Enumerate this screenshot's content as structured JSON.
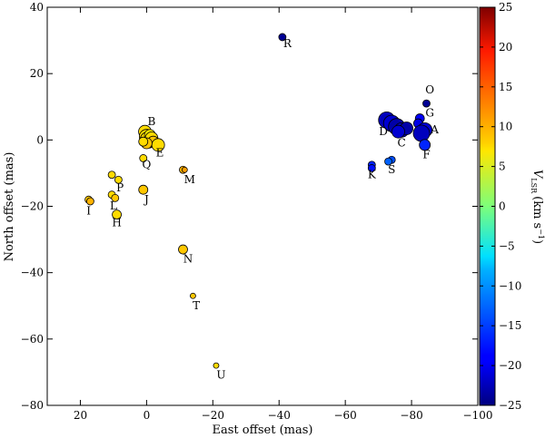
{
  "chart_data": {
    "type": "scatter",
    "xlabel": "East offset (mas)",
    "ylabel": "North offset (mas)",
    "xlim": [
      30,
      -100
    ],
    "ylim": [
      -80,
      40
    ],
    "xticks": [
      20,
      0,
      -20,
      -40,
      -60,
      -80,
      -100
    ],
    "yticks": [
      40,
      20,
      0,
      -20,
      -40,
      -60,
      -80
    ],
    "xtick_labels": [
      "20",
      "0",
      "−20",
      "−40",
      "−60",
      "−80",
      "−100"
    ],
    "ytick_labels": [
      "40",
      "20",
      "0",
      "−20",
      "−40",
      "−60",
      "−80"
    ],
    "colorbar": {
      "label_main": "V",
      "label_sub": "LSR",
      "label_unit": "(km s",
      "label_sup": "−1",
      "label_close": ")",
      "range": [
        -25,
        25
      ],
      "ticks": [
        25,
        20,
        15,
        10,
        5,
        0,
        -5,
        -10,
        -15,
        -20,
        -25
      ],
      "tick_labels": [
        "25",
        "20",
        "15",
        "10",
        "5",
        "0",
        "−5",
        "−10",
        "−15",
        "−20",
        "−25"
      ],
      "colormap": "jet"
    },
    "points": [
      {
        "x": -41,
        "y": 31,
        "v": -24,
        "size": 4
      },
      {
        "x": -84.5,
        "y": 11,
        "v": -24,
        "size": 4
      },
      {
        "x": -82.5,
        "y": 6.5,
        "v": -19,
        "size": 5
      },
      {
        "x": -82,
        "y": 5,
        "v": -20,
        "size": 5
      },
      {
        "x": -84,
        "y": 3,
        "v": -21,
        "size": 8
      },
      {
        "x": -83,
        "y": 2,
        "v": -22,
        "size": 9
      },
      {
        "x": -84,
        "y": -1.5,
        "v": -17,
        "size": 6
      },
      {
        "x": -72.5,
        "y": 6,
        "v": -22,
        "size": 9
      },
      {
        "x": -74,
        "y": 5,
        "v": -21,
        "size": 9
      },
      {
        "x": -75.5,
        "y": 4,
        "v": -23,
        "size": 9
      },
      {
        "x": -77,
        "y": 3,
        "v": -22,
        "size": 8
      },
      {
        "x": -78.5,
        "y": 3.5,
        "v": -23,
        "size": 7
      },
      {
        "x": -76,
        "y": 2.5,
        "v": -21,
        "size": 7
      },
      {
        "x": -68,
        "y": -7.5,
        "v": -17,
        "size": 4
      },
      {
        "x": -68,
        "y": -8.5,
        "v": -18,
        "size": 4
      },
      {
        "x": -74,
        "y": -6,
        "v": -15,
        "size": 4
      },
      {
        "x": -73,
        "y": -6.5,
        "v": -14,
        "size": 4
      },
      {
        "x": 0.5,
        "y": 2.5,
        "v": 8,
        "size": 7
      },
      {
        "x": 0,
        "y": 1,
        "v": 8,
        "size": 8
      },
      {
        "x": -0.5,
        "y": 0,
        "v": 8,
        "size": 9
      },
      {
        "x": -1,
        "y": 1.5,
        "v": 7,
        "size": 6
      },
      {
        "x": -1.5,
        "y": 0.5,
        "v": 8,
        "size": 7
      },
      {
        "x": -2,
        "y": -0.5,
        "v": 9,
        "size": 6
      },
      {
        "x": -3.5,
        "y": -1.5,
        "v": 8,
        "size": 7
      },
      {
        "x": 0,
        "y": -1,
        "v": 9,
        "size": 6
      },
      {
        "x": 1,
        "y": -0.5,
        "v": 8,
        "size": 5
      },
      {
        "x": 1,
        "y": -5.5,
        "v": 8,
        "size": 4
      },
      {
        "x": 10.5,
        "y": -10.5,
        "v": 8,
        "size": 4
      },
      {
        "x": 8.5,
        "y": -12,
        "v": 8,
        "size": 4
      },
      {
        "x": 17.5,
        "y": -18,
        "v": 9,
        "size": 4
      },
      {
        "x": 17,
        "y": -18.5,
        "v": 10,
        "size": 4
      },
      {
        "x": 10.5,
        "y": -16.5,
        "v": 8,
        "size": 4
      },
      {
        "x": 9.5,
        "y": -17.5,
        "v": 9,
        "size": 4
      },
      {
        "x": 9,
        "y": -22.5,
        "v": 8,
        "size": 5
      },
      {
        "x": 1,
        "y": -15,
        "v": 9,
        "size": 5
      },
      {
        "x": -11,
        "y": -9,
        "v": 10,
        "size": 4
      },
      {
        "x": -11.5,
        "y": -9,
        "v": 11,
        "size": 3
      },
      {
        "x": -11,
        "y": -33,
        "v": 9,
        "size": 5
      },
      {
        "x": -14,
        "y": -47,
        "v": 9,
        "size": 3
      },
      {
        "x": -21,
        "y": -68,
        "v": 8,
        "size": 3
      }
    ],
    "labels": [
      {
        "text": "R",
        "x": -42.5,
        "y": 28
      },
      {
        "text": "O",
        "x": -85.5,
        "y": 14
      },
      {
        "text": "G",
        "x": -85.5,
        "y": 7
      },
      {
        "text": "A",
        "x": -87,
        "y": 2
      },
      {
        "text": "D",
        "x": -71.5,
        "y": 1.5
      },
      {
        "text": "C",
        "x": -77,
        "y": -2
      },
      {
        "text": "F",
        "x": -84.5,
        "y": -5.5
      },
      {
        "text": "K",
        "x": -68,
        "y": -11.5
      },
      {
        "text": "S",
        "x": -74,
        "y": -10
      },
      {
        "text": "B",
        "x": -1.5,
        "y": 4.5
      },
      {
        "text": "E",
        "x": -4,
        "y": -5
      },
      {
        "text": "Q",
        "x": 0,
        "y": -8.5
      },
      {
        "text": "P",
        "x": 8,
        "y": -15.5
      },
      {
        "text": "M",
        "x": -13,
        "y": -13
      },
      {
        "text": "I",
        "x": 17.5,
        "y": -22.5
      },
      {
        "text": "L",
        "x": 10,
        "y": -21
      },
      {
        "text": "J",
        "x": 0,
        "y": -19
      },
      {
        "text": "H",
        "x": 9,
        "y": -26
      },
      {
        "text": "N",
        "x": -12.5,
        "y": -37
      },
      {
        "text": "T",
        "x": -15,
        "y": -51
      },
      {
        "text": "U",
        "x": -22.5,
        "y": -72
      }
    ]
  }
}
